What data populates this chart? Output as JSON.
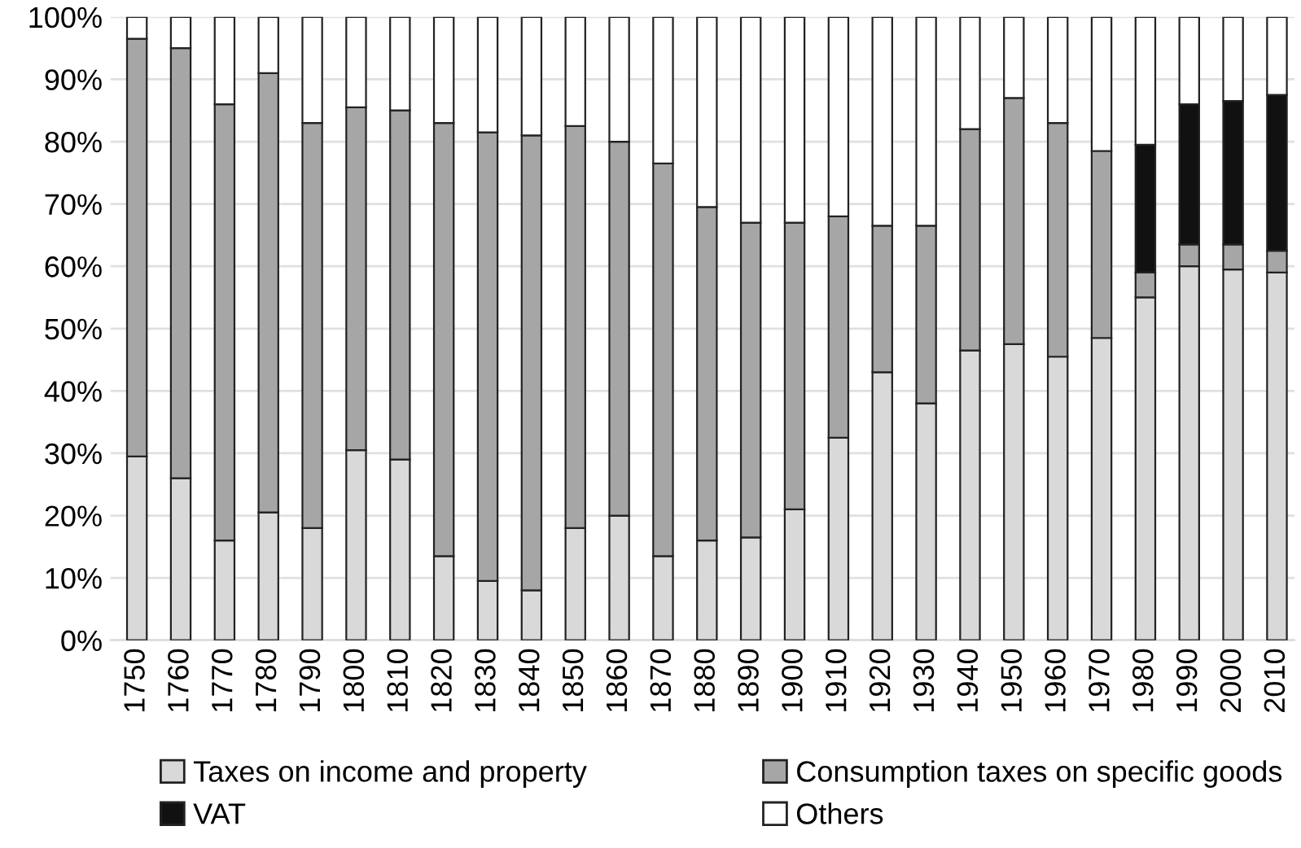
{
  "chart_data": {
    "type": "bar",
    "stacked": true,
    "categories": [
      "1750",
      "1760",
      "1770",
      "1780",
      "1790",
      "1800",
      "1810",
      "1820",
      "1830",
      "1840",
      "1850",
      "1860",
      "1870",
      "1880",
      "1890",
      "1900",
      "1910",
      "1920",
      "1930",
      "1940",
      "1950",
      "1960",
      "1970",
      "1980",
      "1990",
      "2000",
      "2010"
    ],
    "series": [
      {
        "name": "Taxes on income and property",
        "color": "#d9d9d9",
        "values": [
          29.5,
          26,
          16,
          20.5,
          18,
          30.5,
          29,
          13.5,
          9.5,
          8,
          18,
          20,
          13.5,
          16,
          16.5,
          21,
          32.5,
          43,
          38,
          46.5,
          47.5,
          45.5,
          48.5,
          55,
          60,
          59.5,
          59
        ]
      },
      {
        "name": "Consumption taxes on specific goods",
        "color": "#a6a6a6",
        "values": [
          67,
          69,
          70,
          70.5,
          65,
          55,
          56,
          69.5,
          72,
          73,
          64.5,
          60,
          63,
          53.5,
          50.5,
          46,
          35.5,
          23.5,
          28.5,
          35.5,
          39.5,
          37.5,
          30,
          4,
          3.5,
          4,
          3.5
        ]
      },
      {
        "name": "VAT",
        "color": "#111111",
        "values": [
          null,
          null,
          null,
          null,
          null,
          null,
          null,
          null,
          null,
          null,
          null,
          null,
          null,
          null,
          null,
          null,
          null,
          null,
          null,
          null,
          null,
          null,
          null,
          20.5,
          22.5,
          23,
          25
        ]
      },
      {
        "name": "Others",
        "color": "#ffffff",
        "values": [
          3.5,
          5,
          14,
          9,
          17,
          14.5,
          15,
          17,
          18.5,
          19,
          17.5,
          20,
          23.5,
          30.5,
          33,
          33,
          32,
          33.5,
          33.5,
          18,
          13,
          17,
          21.5,
          20.5,
          14,
          13.5,
          12.5
        ]
      }
    ],
    "ylim": [
      0,
      100
    ],
    "yticks": [
      {
        "value": 0,
        "label": "0%"
      },
      {
        "value": 10,
        "label": "10%"
      },
      {
        "value": 20,
        "label": "20%"
      },
      {
        "value": 30,
        "label": "30%"
      },
      {
        "value": 40,
        "label": "40%"
      },
      {
        "value": 50,
        "label": "50%"
      },
      {
        "value": 60,
        "label": "60%"
      },
      {
        "value": 70,
        "label": "70%"
      },
      {
        "value": 80,
        "label": "80%"
      },
      {
        "value": 90,
        "label": "90%"
      },
      {
        "value": 100,
        "label": "100%"
      }
    ],
    "grid": "y",
    "legend": "bottom"
  }
}
